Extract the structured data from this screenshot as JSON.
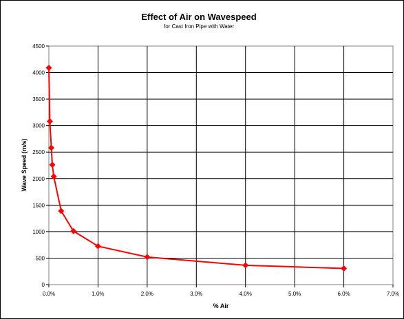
{
  "chart_data": {
    "type": "scatter",
    "title": "Effect of Air on Wavespeed",
    "subtitle": "for Cast Iron Pipe with Water",
    "xlabel": "% Air",
    "ylabel": "Wave Speed (m/s)",
    "xlim": [
      0,
      0.07
    ],
    "ylim": [
      0,
      4500
    ],
    "x_ticks": [
      0,
      0.01,
      0.02,
      0.03,
      0.04,
      0.05,
      0.06,
      0.07
    ],
    "x_tick_labels": [
      "0.0%",
      "1.0%",
      "2.0%",
      "3.0%",
      "4.0%",
      "5.0%",
      "6.0%",
      "7.0%"
    ],
    "y_ticks": [
      0,
      500,
      1000,
      1500,
      2000,
      2500,
      3000,
      3500,
      4000,
      4500
    ],
    "y_tick_labels": [
      "0",
      "500",
      "1000",
      "1500",
      "2000",
      "2500",
      "3000",
      "3500",
      "4000",
      "4500"
    ],
    "grid": true,
    "legend": "none",
    "series_color": "#ff0000",
    "marker": "diamond",
    "points": [
      {
        "x": 0.0,
        "y": 4090
      },
      {
        "x": 0.0001,
        "y": 3590
      },
      {
        "x": 0.0002,
        "y": 3080
      },
      {
        "x": 0.0005,
        "y": 2580
      },
      {
        "x": 0.0007,
        "y": 2260
      },
      {
        "x": 0.001,
        "y": 2040
      },
      {
        "x": 0.0025,
        "y": 1390
      },
      {
        "x": 0.005,
        "y": 1010
      },
      {
        "x": 0.01,
        "y": 725
      },
      {
        "x": 0.02,
        "y": 520
      },
      {
        "x": 0.04,
        "y": 365
      },
      {
        "x": 0.06,
        "y": 305
      }
    ],
    "marker_indices": [
      0,
      2,
      3,
      4,
      5,
      6,
      7,
      8,
      9,
      10,
      11
    ]
  }
}
